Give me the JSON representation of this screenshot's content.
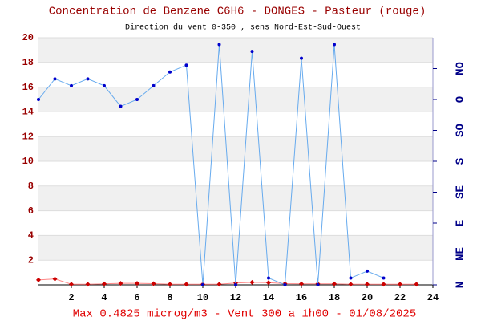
{
  "chart_data": {
    "type": "line",
    "title": "Concentration de Benzene C6H6  -   DONGES - Pasteur (rouge)",
    "subtitle": "Direction du vent 0-350 , sens Nord-Est-Sud-Ouest",
    "footer": "Max 0.4825 microg/m3 - Vent 300  a 1h00 - 01/08/2025",
    "x": [
      0,
      1,
      2,
      3,
      4,
      5,
      6,
      7,
      8,
      9,
      10,
      11,
      12,
      13,
      14,
      15,
      16,
      17,
      18,
      19,
      20,
      21,
      22,
      23
    ],
    "xlim": [
      0,
      24
    ],
    "xticks": [
      2,
      4,
      6,
      8,
      10,
      12,
      14,
      16,
      18,
      20,
      22,
      24
    ],
    "ylim": [
      0,
      20
    ],
    "yticks": [
      2,
      4,
      6,
      8,
      10,
      12,
      14,
      16,
      18,
      20
    ],
    "y2lim": [
      0,
      360
    ],
    "y2ticks": [
      {
        "value": 0,
        "label": "N"
      },
      {
        "value": 45,
        "label": "NE"
      },
      {
        "value": 90,
        "label": "E"
      },
      {
        "value": 135,
        "label": "SE"
      },
      {
        "value": 180,
        "label": "S"
      },
      {
        "value": 225,
        "label": "SO"
      },
      {
        "value": 270,
        "label": "O"
      },
      {
        "value": 315,
        "label": "NO"
      }
    ],
    "grid": true,
    "series": [
      {
        "name": "Benzene",
        "color": "#cc0000",
        "values": [
          0.4,
          0.48,
          0.05,
          0.05,
          0.08,
          0.12,
          0.12,
          0.1,
          0.05,
          0.05,
          0.05,
          0.05,
          0.15,
          0.2,
          0.18,
          0.1,
          0.08,
          0.08,
          0.08,
          0.05,
          0.05,
          0.05,
          0.05,
          0.05
        ]
      },
      {
        "name": "Vent",
        "color": "#0000cc",
        "axis": "y2",
        "values": [
          270,
          300,
          290,
          300,
          290,
          260,
          270,
          290,
          310,
          320,
          0,
          350,
          0,
          340,
          10,
          0,
          330,
          0,
          350,
          10,
          20,
          10,
          null,
          null
        ]
      }
    ]
  }
}
